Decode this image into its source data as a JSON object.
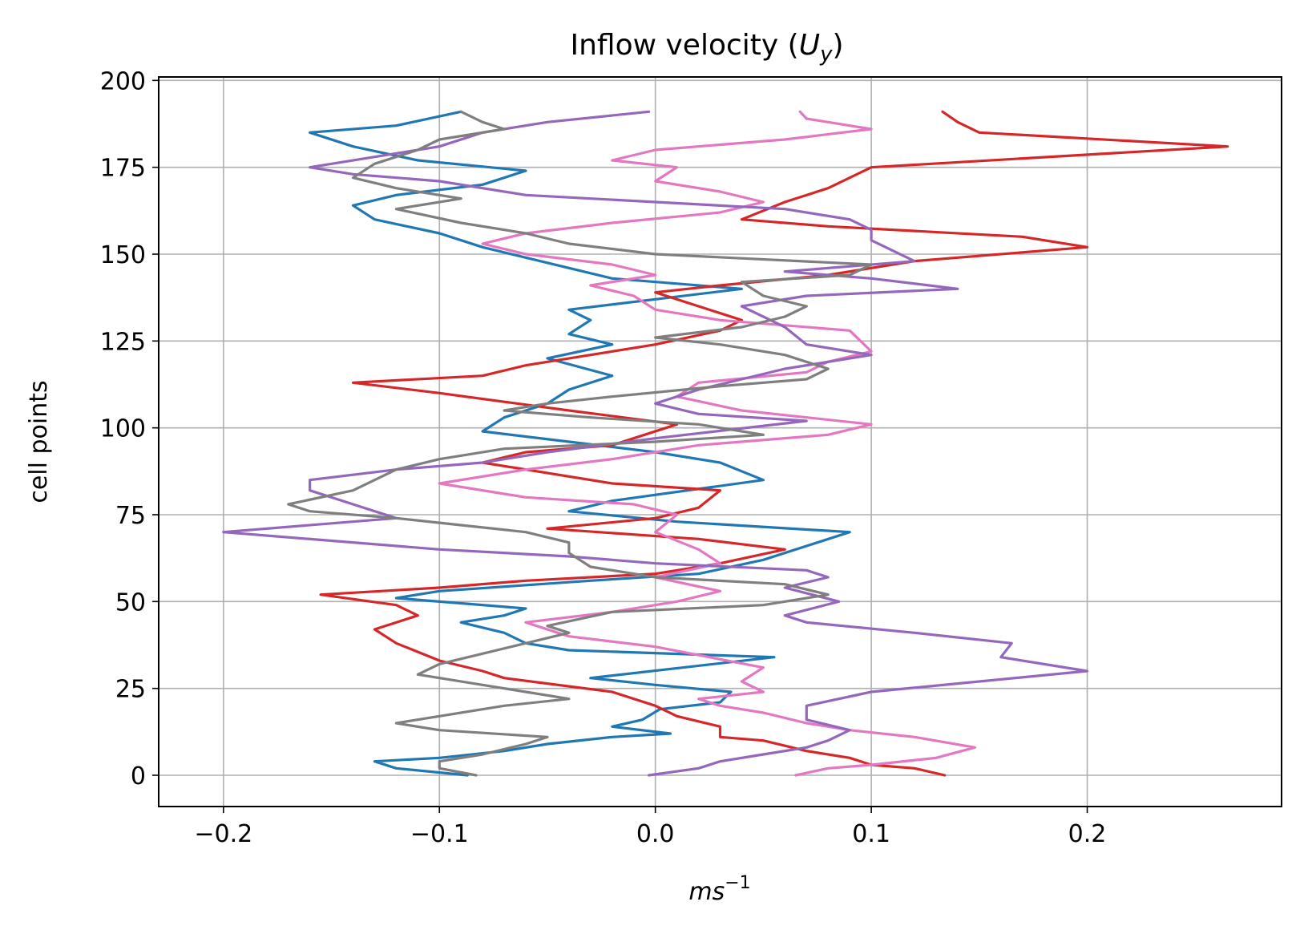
{
  "chart_data": {
    "type": "line",
    "title_main": "Inflow velocity (",
    "title_var": "U",
    "title_sub": "y",
    "title_end": ")",
    "xlabel_base": "ms",
    "xlabel_exp": "−1",
    "ylabel": "cell points",
    "xlim": [
      -0.23,
      0.29
    ],
    "ylim": [
      -9,
      201
    ],
    "xticks": [
      -0.2,
      -0.1,
      0.0,
      0.1,
      0.2
    ],
    "xtick_labels": [
      "−0.2",
      "−0.1",
      "0.0",
      "0.1",
      "0.2"
    ],
    "yticks": [
      0,
      25,
      50,
      75,
      100,
      125,
      150,
      175,
      200
    ],
    "ytick_labels": [
      "0",
      "25",
      "50",
      "75",
      "100",
      "125",
      "150",
      "175",
      "200"
    ],
    "grid": true,
    "series": [
      {
        "color": "#1f77b4",
        "points": [
          [
            -0.087,
            0
          ],
          [
            -0.12,
            2
          ],
          [
            -0.13,
            4
          ],
          [
            -0.1,
            5
          ],
          [
            -0.07,
            7
          ],
          [
            -0.05,
            9
          ],
          [
            -0.02,
            11
          ],
          [
            0.007,
            12
          ],
          [
            -0.02,
            14
          ],
          [
            -0.006,
            16
          ],
          [
            0.002,
            19
          ],
          [
            0.03,
            21
          ],
          [
            0.035,
            24
          ],
          [
            0.0,
            26
          ],
          [
            -0.03,
            28
          ],
          [
            0.055,
            34
          ],
          [
            -0.04,
            36
          ],
          [
            -0.06,
            38
          ],
          [
            -0.07,
            41
          ],
          [
            -0.09,
            44
          ],
          [
            -0.07,
            46
          ],
          [
            -0.06,
            48
          ],
          [
            -0.12,
            51
          ],
          [
            -0.1,
            53
          ],
          [
            -0.03,
            56
          ],
          [
            0.02,
            58
          ],
          [
            0.05,
            62
          ],
          [
            0.09,
            70
          ],
          [
            0.01,
            73
          ],
          [
            -0.04,
            76
          ],
          [
            -0.02,
            79
          ],
          [
            0.05,
            85
          ],
          [
            0.03,
            90
          ],
          [
            0.0,
            93
          ],
          [
            -0.04,
            96
          ],
          [
            -0.08,
            99
          ],
          [
            -0.07,
            103
          ],
          [
            -0.05,
            107
          ],
          [
            -0.04,
            111
          ],
          [
            -0.02,
            115
          ],
          [
            -0.05,
            120
          ],
          [
            -0.02,
            124
          ],
          [
            -0.04,
            127
          ],
          [
            -0.03,
            131
          ],
          [
            -0.04,
            134
          ],
          [
            0.0,
            137
          ],
          [
            0.04,
            140
          ],
          [
            -0.02,
            143
          ],
          [
            -0.04,
            146
          ],
          [
            -0.06,
            149
          ],
          [
            -0.08,
            152
          ],
          [
            -0.1,
            156
          ],
          [
            -0.13,
            160
          ],
          [
            -0.14,
            164
          ],
          [
            -0.12,
            167
          ],
          [
            -0.08,
            170
          ],
          [
            -0.06,
            174
          ],
          [
            -0.11,
            177
          ],
          [
            -0.14,
            181
          ],
          [
            -0.16,
            185
          ],
          [
            -0.12,
            187
          ],
          [
            -0.09,
            191
          ]
        ]
      },
      {
        "color": "#d62728",
        "points": [
          [
            0.134,
            0
          ],
          [
            0.12,
            2
          ],
          [
            0.1,
            3
          ],
          [
            0.09,
            5
          ],
          [
            0.07,
            7
          ],
          [
            0.05,
            10
          ],
          [
            0.03,
            11
          ],
          [
            0.03,
            14
          ],
          [
            0.01,
            17
          ],
          [
            0.0,
            20
          ],
          [
            -0.02,
            24
          ],
          [
            -0.07,
            28
          ],
          [
            -0.08,
            30
          ],
          [
            -0.1,
            33
          ],
          [
            -0.12,
            38
          ],
          [
            -0.13,
            42
          ],
          [
            -0.11,
            46
          ],
          [
            -0.12,
            49
          ],
          [
            -0.155,
            52
          ],
          [
            -0.1,
            54
          ],
          [
            -0.06,
            56
          ],
          [
            0.0,
            58
          ],
          [
            0.03,
            61
          ],
          [
            0.06,
            65
          ],
          [
            0.02,
            68
          ],
          [
            -0.05,
            71
          ],
          [
            0.0,
            74
          ],
          [
            0.02,
            77
          ],
          [
            0.03,
            82
          ],
          [
            -0.02,
            84
          ],
          [
            -0.08,
            90
          ],
          [
            -0.06,
            93
          ],
          [
            -0.02,
            95
          ],
          [
            0.01,
            101
          ],
          [
            -0.04,
            105
          ],
          [
            -0.1,
            110
          ],
          [
            -0.14,
            113
          ],
          [
            -0.08,
            115
          ],
          [
            -0.06,
            118
          ],
          [
            -0.03,
            121
          ],
          [
            0.0,
            124
          ],
          [
            0.03,
            128
          ],
          [
            0.04,
            131
          ],
          [
            0.02,
            135
          ],
          [
            0.0,
            139
          ],
          [
            0.03,
            141
          ],
          [
            0.08,
            144
          ],
          [
            0.12,
            148
          ],
          [
            0.2,
            152
          ],
          [
            0.17,
            155
          ],
          [
            0.08,
            158
          ],
          [
            0.04,
            160
          ],
          [
            0.06,
            165
          ],
          [
            0.08,
            169
          ],
          [
            0.09,
            172
          ],
          [
            0.1,
            175
          ],
          [
            0.265,
            181
          ],
          [
            0.15,
            185
          ],
          [
            0.14,
            188
          ],
          [
            0.133,
            191
          ]
        ]
      },
      {
        "color": "#e377c2",
        "points": [
          [
            0.065,
            0
          ],
          [
            0.08,
            2
          ],
          [
            0.1,
            3
          ],
          [
            0.13,
            5
          ],
          [
            0.148,
            8
          ],
          [
            0.12,
            11
          ],
          [
            0.09,
            13
          ],
          [
            0.07,
            15
          ],
          [
            0.05,
            18
          ],
          [
            0.03,
            20
          ],
          [
            0.02,
            22
          ],
          [
            0.05,
            24
          ],
          [
            0.04,
            27
          ],
          [
            0.05,
            31
          ],
          [
            0.0,
            37
          ],
          [
            -0.04,
            40
          ],
          [
            -0.06,
            44
          ],
          [
            -0.02,
            47
          ],
          [
            0.01,
            50
          ],
          [
            0.03,
            53
          ],
          [
            0.0,
            57
          ],
          [
            0.03,
            61
          ],
          [
            0.02,
            65
          ],
          [
            0.0,
            70
          ],
          [
            0.01,
            75
          ],
          [
            -0.01,
            78
          ],
          [
            -0.06,
            80
          ],
          [
            -0.1,
            84
          ],
          [
            -0.06,
            88
          ],
          [
            -0.02,
            91
          ],
          [
            0.02,
            95
          ],
          [
            0.08,
            98
          ],
          [
            0.1,
            101
          ],
          [
            0.04,
            105
          ],
          [
            0.01,
            109
          ],
          [
            0.02,
            113
          ],
          [
            0.07,
            116
          ],
          [
            0.08,
            119
          ],
          [
            0.1,
            122
          ],
          [
            0.09,
            128
          ],
          [
            0.03,
            131
          ],
          [
            0.0,
            134
          ],
          [
            -0.01,
            138
          ],
          [
            -0.03,
            141
          ],
          [
            0.0,
            144
          ],
          [
            -0.02,
            147
          ],
          [
            -0.06,
            150
          ],
          [
            -0.08,
            153
          ],
          [
            -0.06,
            156
          ],
          [
            -0.02,
            159
          ],
          [
            0.03,
            162
          ],
          [
            0.05,
            165
          ],
          [
            0.03,
            168
          ],
          [
            0.0,
            171
          ],
          [
            0.01,
            175
          ],
          [
            -0.02,
            177
          ],
          [
            0.0,
            180
          ],
          [
            0.06,
            183
          ],
          [
            0.1,
            186
          ],
          [
            0.07,
            189
          ],
          [
            0.067,
            191
          ]
        ]
      },
      {
        "color": "#9467bd",
        "points": [
          [
            -0.003,
            0
          ],
          [
            0.02,
            2
          ],
          [
            0.03,
            4
          ],
          [
            0.05,
            6
          ],
          [
            0.07,
            8
          ],
          [
            0.08,
            10
          ],
          [
            0.09,
            13
          ],
          [
            0.07,
            16
          ],
          [
            0.07,
            20
          ],
          [
            0.1,
            24
          ],
          [
            0.2,
            30
          ],
          [
            0.16,
            34
          ],
          [
            0.165,
            38
          ],
          [
            0.12,
            41
          ],
          [
            0.07,
            44
          ],
          [
            0.06,
            46
          ],
          [
            0.085,
            50
          ],
          [
            0.06,
            54
          ],
          [
            0.08,
            57
          ],
          [
            0.07,
            59
          ],
          [
            0.0,
            61
          ],
          [
            -0.04,
            63
          ],
          [
            -0.1,
            65
          ],
          [
            -0.2,
            70
          ],
          [
            -0.12,
            74
          ],
          [
            -0.14,
            78
          ],
          [
            -0.16,
            82
          ],
          [
            -0.16,
            85
          ],
          [
            -0.12,
            88
          ],
          [
            -0.08,
            90
          ],
          [
            -0.05,
            93
          ],
          [
            0.0,
            97
          ],
          [
            0.07,
            102
          ],
          [
            0.02,
            104
          ],
          [
            0.0,
            107
          ],
          [
            0.02,
            111
          ],
          [
            0.04,
            114
          ],
          [
            0.06,
            117
          ],
          [
            0.1,
            121
          ],
          [
            0.07,
            124
          ],
          [
            0.06,
            129
          ],
          [
            0.05,
            132
          ],
          [
            0.04,
            135
          ],
          [
            0.07,
            138
          ],
          [
            0.14,
            140
          ],
          [
            0.1,
            143
          ],
          [
            0.06,
            145
          ],
          [
            0.12,
            148
          ],
          [
            0.11,
            151
          ],
          [
            0.1,
            154
          ],
          [
            0.1,
            157
          ],
          [
            0.09,
            160
          ],
          [
            0.06,
            163
          ],
          [
            0.0,
            165
          ],
          [
            -0.06,
            167
          ],
          [
            -0.1,
            171
          ],
          [
            -0.14,
            173
          ],
          [
            -0.16,
            175
          ],
          [
            -0.13,
            178
          ],
          [
            -0.1,
            181
          ],
          [
            -0.08,
            185
          ],
          [
            -0.05,
            188
          ],
          [
            -0.003,
            191
          ]
        ]
      },
      {
        "color": "#7f7f7f",
        "points": [
          [
            -0.083,
            0
          ],
          [
            -0.1,
            2
          ],
          [
            -0.1,
            4
          ],
          [
            -0.08,
            6
          ],
          [
            -0.06,
            9
          ],
          [
            -0.05,
            11
          ],
          [
            -0.1,
            13
          ],
          [
            -0.12,
            15
          ],
          [
            -0.1,
            17
          ],
          [
            -0.07,
            20
          ],
          [
            -0.04,
            22
          ],
          [
            -0.06,
            24
          ],
          [
            -0.08,
            26
          ],
          [
            -0.11,
            29
          ],
          [
            -0.1,
            32
          ],
          [
            -0.08,
            35
          ],
          [
            -0.06,
            38
          ],
          [
            -0.04,
            41
          ],
          [
            -0.05,
            43
          ],
          [
            -0.02,
            47
          ],
          [
            0.05,
            49
          ],
          [
            0.08,
            52
          ],
          [
            0.06,
            55
          ],
          [
            0.0,
            57
          ],
          [
            -0.03,
            60
          ],
          [
            -0.04,
            64
          ],
          [
            -0.04,
            67
          ],
          [
            -0.06,
            70
          ],
          [
            -0.09,
            72
          ],
          [
            -0.12,
            74
          ],
          [
            -0.16,
            76
          ],
          [
            -0.17,
            78
          ],
          [
            -0.14,
            82
          ],
          [
            -0.13,
            85
          ],
          [
            -0.12,
            88
          ],
          [
            -0.1,
            91
          ],
          [
            -0.07,
            94
          ],
          [
            0.0,
            96
          ],
          [
            0.05,
            98
          ],
          [
            0.02,
            101
          ],
          [
            -0.03,
            103
          ],
          [
            -0.07,
            105
          ],
          [
            -0.05,
            107
          ],
          [
            -0.02,
            109
          ],
          [
            0.03,
            112
          ],
          [
            0.07,
            114
          ],
          [
            0.08,
            117
          ],
          [
            0.06,
            121
          ],
          [
            0.03,
            124
          ],
          [
            0.0,
            126
          ],
          [
            0.04,
            129
          ],
          [
            0.06,
            132
          ],
          [
            0.07,
            135
          ],
          [
            0.05,
            138
          ],
          [
            0.04,
            142
          ],
          [
            0.09,
            144
          ],
          [
            0.1,
            147
          ],
          [
            0.0,
            150
          ],
          [
            -0.04,
            153
          ],
          [
            -0.06,
            156
          ],
          [
            -0.09,
            159
          ],
          [
            -0.12,
            163
          ],
          [
            -0.09,
            166
          ],
          [
            -0.12,
            169
          ],
          [
            -0.14,
            172
          ],
          [
            -0.13,
            176
          ],
          [
            -0.11,
            180
          ],
          [
            -0.1,
            183
          ],
          [
            -0.07,
            186
          ],
          [
            -0.08,
            188
          ],
          [
            -0.09,
            191
          ]
        ]
      }
    ]
  }
}
